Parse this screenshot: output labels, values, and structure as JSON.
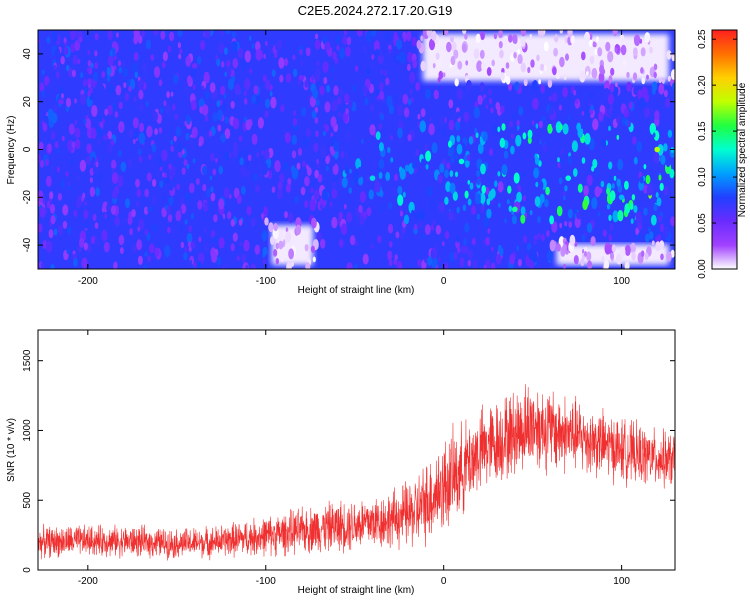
{
  "title": "C2E5.2024.272.17.20.G19",
  "chart_data": [
    {
      "type": "heatmap",
      "xlabel": "Height of straight line (km)",
      "ylabel": "Frequency (Hz)",
      "xlim": [
        -228,
        130
      ],
      "ylim": [
        -50,
        50
      ],
      "x_ticks": [
        -200,
        -100,
        0,
        100
      ],
      "x_tick_labels": [
        "-200",
        "-100",
        "0",
        "100"
      ],
      "y_ticks": [
        -40,
        -20,
        0,
        20,
        40
      ],
      "y_tick_labels": [
        "-40",
        "-20",
        "0",
        "20",
        "40"
      ],
      "colorbar": {
        "label": "Normalized spectral amplitude",
        "range": [
          0,
          0.26
        ],
        "ticks": [
          0.0,
          0.05,
          0.1,
          0.15,
          0.2,
          0.25
        ],
        "tick_labels": [
          "0.00",
          "0.05",
          "0.10",
          "0.15",
          "0.20",
          "0.25"
        ],
        "colormap": [
          "#ffffff",
          "#a040ff",
          "#6a2cff",
          "#2040ff",
          "#00a0ff",
          "#00ffd0",
          "#20ff40",
          "#c0ff00",
          "#ffd000",
          "#ff7000",
          "#ff2020"
        ]
      },
      "cells": [
        {
          "x": -215,
          "y": 20,
          "v": 0.05
        },
        {
          "x": -190,
          "y": 5,
          "v": 0.06
        },
        {
          "x": -165,
          "y": -25,
          "v": 0.08
        },
        {
          "x": -140,
          "y": 35,
          "v": 0.05
        },
        {
          "x": -110,
          "y": -10,
          "v": 0.07
        },
        {
          "x": -80,
          "y": 30,
          "v": 0.05
        },
        {
          "x": -40,
          "y": -12,
          "v": 0.12
        },
        {
          "x": 10,
          "y": -5,
          "v": 0.13
        },
        {
          "x": 40,
          "y": -25,
          "v": 0.14
        },
        {
          "x": 70,
          "y": -12,
          "v": 0.13
        },
        {
          "x": 100,
          "y": -20,
          "v": 0.11
        },
        {
          "x": 120,
          "y": 0,
          "v": 0.18
        }
      ],
      "low_amplitude_regions": [
        {
          "x": [
            -15,
            130
          ],
          "y": [
            27,
            50
          ]
        },
        {
          "x": [
            60,
            130
          ],
          "y": [
            -50,
            -38
          ]
        },
        {
          "x": [
            -100,
            -70
          ],
          "y": [
            -50,
            -30
          ]
        }
      ],
      "high_amplitude_band": {
        "x": [
          -60,
          130
        ],
        "y": [
          -30,
          10
        ]
      }
    },
    {
      "type": "line",
      "xlabel": "Height of straight line (km)",
      "ylabel": "SNR (10 * v/v)",
      "xlim": [
        -228,
        130
      ],
      "ylim": [
        0,
        1720
      ],
      "x_ticks": [
        -200,
        -100,
        0,
        100
      ],
      "x_tick_labels": [
        "-200",
        "-100",
        "0",
        "100"
      ],
      "y_ticks": [
        0,
        500,
        1000,
        1500
      ],
      "y_tick_labels": [
        "0",
        "500",
        "1000",
        "1500"
      ],
      "color": "#f03030",
      "series": [
        {
          "x": [
            -228,
            -200,
            -175,
            -150,
            -130,
            -110,
            -90,
            -70,
            -50,
            -30,
            -15,
            -5,
            0,
            10,
            20,
            35,
            50,
            60,
            75,
            90,
            105,
            120,
            130
          ],
          "mean": [
            200,
            210,
            205,
            190,
            200,
            230,
            260,
            300,
            330,
            360,
            420,
            550,
            600,
            720,
            850,
            950,
            1050,
            1000,
            960,
            900,
            840,
            800,
            780
          ],
          "spread": [
            110,
            110,
            110,
            105,
            110,
            130,
            150,
            170,
            190,
            200,
            260,
            320,
            340,
            320,
            300,
            300,
            320,
            300,
            260,
            240,
            220,
            200,
            200
          ]
        }
      ]
    }
  ]
}
